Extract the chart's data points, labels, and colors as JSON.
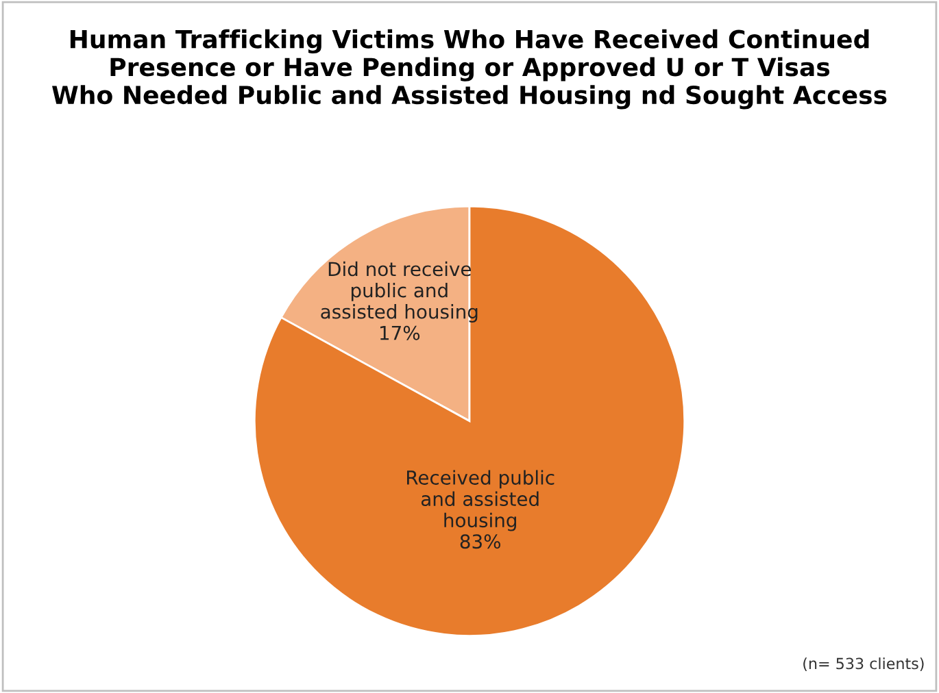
{
  "chart_data": {
    "type": "pie",
    "title": "Human Trafficking Victims Who Have Received Continued\nPresence or Have Pending or Approved U or T Visas\nWho Needed Public and Assisted Housing nd Sought Access",
    "categories": [
      "Did not receive\npublic and\nassisted housing",
      "Received public\nand assisted\nhousing"
    ],
    "values": [
      17,
      83
    ],
    "value_labels": [
      "17%",
      "83%"
    ],
    "colors": [
      "#f4b183",
      "#e87c2c"
    ],
    "annotations": [
      "(n= 533 clients)"
    ],
    "legend": false
  }
}
